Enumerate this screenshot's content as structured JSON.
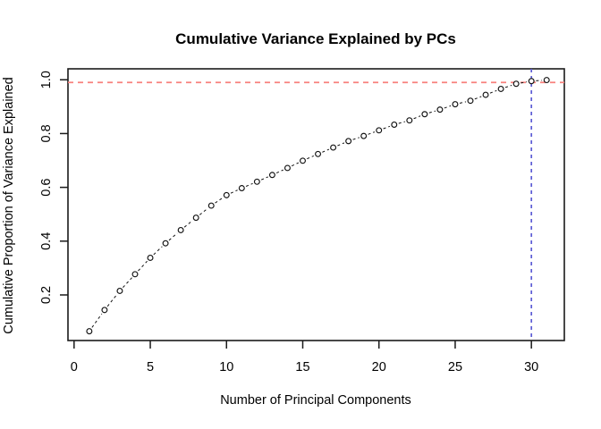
{
  "chart_data": {
    "type": "line",
    "title": "Cumulative Variance Explained by PCs",
    "xlabel": "Number of Principal Components",
    "ylabel": "Cumulative Proportion of Variance Explained",
    "x": [
      1,
      2,
      3,
      4,
      5,
      6,
      7,
      8,
      9,
      10,
      11,
      12,
      13,
      14,
      15,
      16,
      17,
      18,
      19,
      20,
      21,
      22,
      23,
      24,
      25,
      26,
      27,
      28,
      29,
      30,
      31
    ],
    "values": [
      0.065,
      0.144,
      0.215,
      0.277,
      0.338,
      0.392,
      0.441,
      0.487,
      0.532,
      0.571,
      0.597,
      0.621,
      0.646,
      0.672,
      0.699,
      0.724,
      0.748,
      0.772,
      0.791,
      0.812,
      0.833,
      0.849,
      0.872,
      0.889,
      0.909,
      0.922,
      0.944,
      0.966,
      0.985,
      0.995,
      0.999
    ],
    "xticks": [
      0,
      5,
      10,
      15,
      20,
      25,
      30
    ],
    "ytick_labels": [
      "0.2",
      "0.4",
      "0.6",
      "0.8",
      "1.0"
    ],
    "ytick_values": [
      0.2,
      0.4,
      0.6,
      0.8,
      1.0
    ],
    "xlim": [
      -0.4,
      32.16
    ],
    "ylim": [
      0.0305,
      1.0407
    ],
    "marker": "open-circle",
    "line_style": "dashed",
    "grid": false,
    "legend": null,
    "reference_lines": {
      "horizontal": {
        "value": 0.99,
        "color": "#f8817d",
        "style": "dashed"
      },
      "vertical": {
        "value": 30,
        "color": "#5d5dd5",
        "style": "dashed"
      }
    },
    "colors": {
      "points": "#111111",
      "series_line": "#111111",
      "box": "#1a1a1a",
      "background": "#ffffff"
    }
  }
}
